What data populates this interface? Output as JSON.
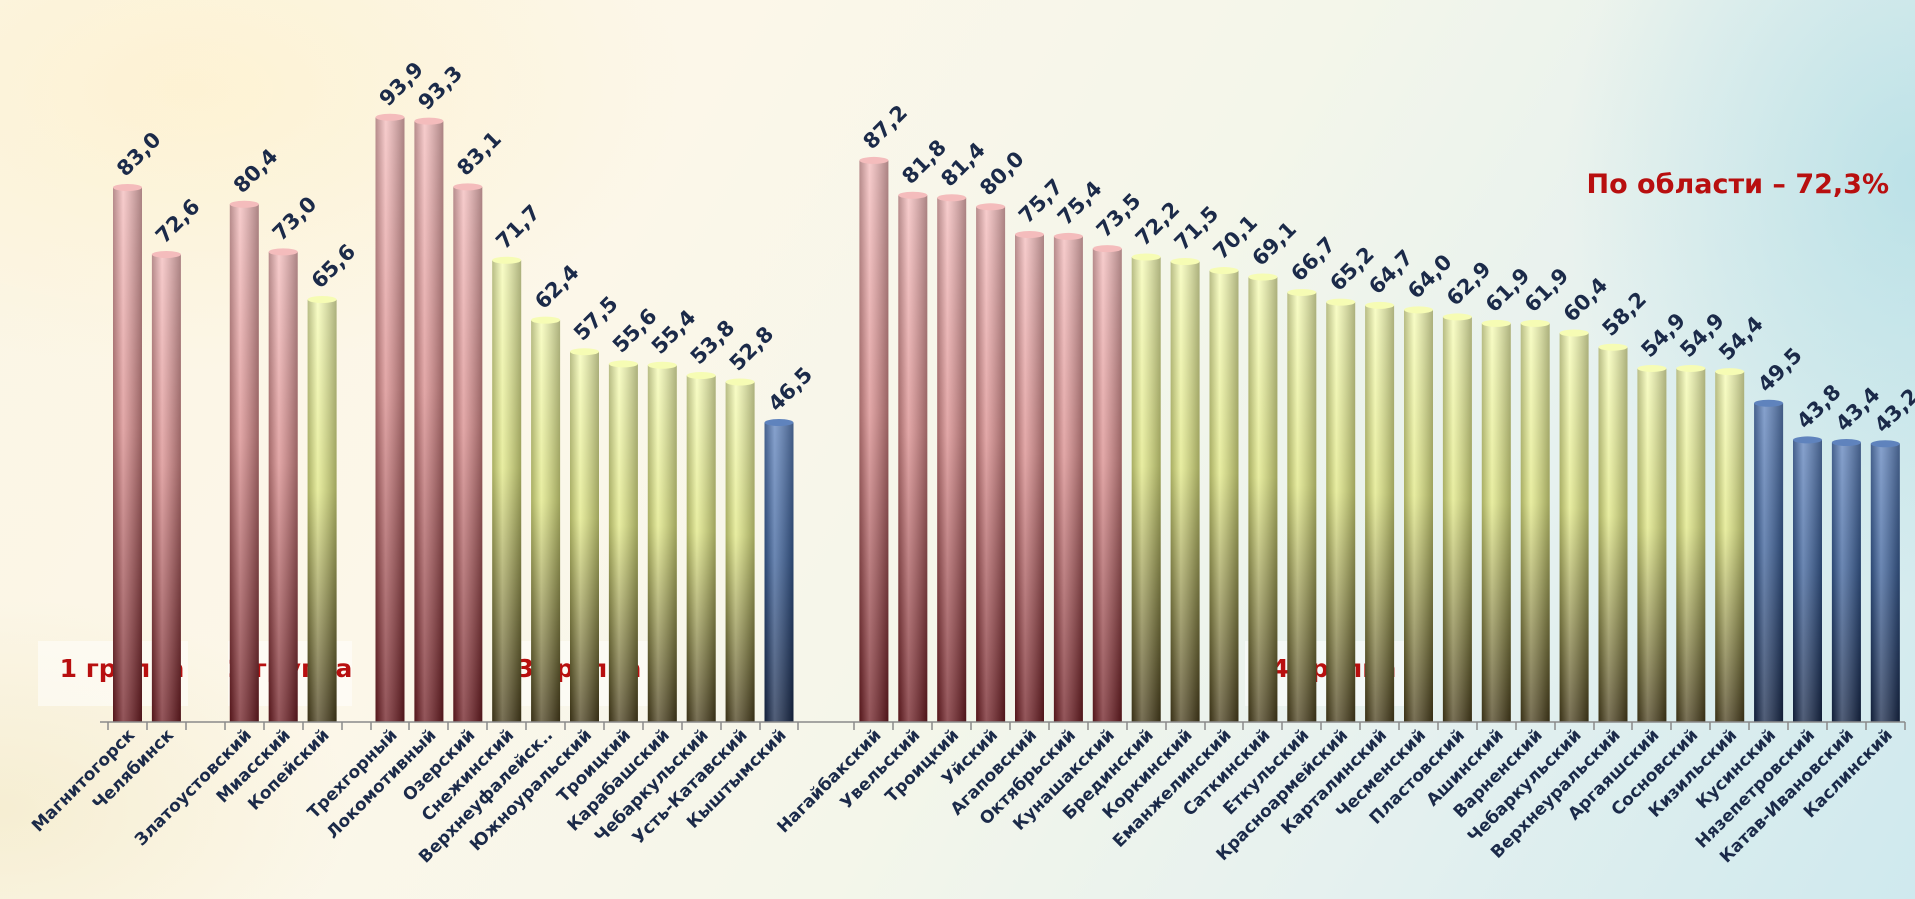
{
  "chart_data": {
    "type": "bar",
    "categories": [
      "Магнитогорск",
      "Челябинск",
      "Златоустовский",
      "Миасский",
      "Копейский",
      "Трехгорный",
      "Локомотивный",
      "Озерский",
      "Снежинский",
      "Верхнеуфалейск..",
      "Южноуральский",
      "Троицкий",
      "Карабашский",
      "Чебаркульский",
      "Усть-Катавский",
      "Кыштымский",
      "Нагайбакский",
      "Увельский",
      "Троицкий",
      "Уйский",
      "Агаповский",
      "Октябрьский",
      "Кунашакский",
      "Брединский",
      "Коркинский",
      "Еманжелинский",
      "Саткинский",
      "Еткульский",
      "Красноармейский",
      "Карталинский",
      "Чесменский",
      "Пластовский",
      "Ашинский",
      "Варненский",
      "Чебаркульский",
      "Верхнеуральский",
      "Аргаяшский",
      "Сосновский",
      "Кизильский",
      "Кусинский",
      "Нязепетровский",
      "Катав-Ивановский",
      "Каслинский"
    ],
    "values": [
      83.0,
      72.6,
      80.4,
      73.0,
      65.6,
      93.9,
      93.3,
      83.1,
      71.7,
      62.4,
      57.5,
      55.6,
      55.4,
      53.8,
      52.8,
      46.5,
      87.2,
      81.8,
      81.4,
      80.0,
      75.7,
      75.4,
      73.5,
      72.2,
      71.5,
      70.1,
      69.1,
      66.7,
      65.2,
      64.7,
      64.0,
      62.9,
      61.9,
      61.9,
      60.4,
      58.2,
      54.9,
      54.9,
      54.4,
      49.5,
      43.8,
      43.4,
      43.2
    ],
    "value_labels": [
      "83,0",
      "72,6",
      "80,4",
      "73,0",
      "65,6",
      "93,9",
      "93,3",
      "83,1",
      "71,7",
      "62,4",
      "57,5",
      "55,6",
      "55,4",
      "53,8",
      "52,8",
      "46,5",
      "87,2",
      "81,8",
      "81,4",
      "80,0",
      "75,7",
      "75,4",
      "73,5",
      "72,2",
      "71,5",
      "70,1",
      "69,1",
      "66,7",
      "65,2",
      "64,7",
      "64,0",
      "62,9",
      "61,9",
      "61,9",
      "60,4",
      "58,2",
      "54,9",
      "54,9",
      "54,4",
      "49,5",
      "43,8",
      "43,4",
      "43,2"
    ],
    "bar_colors": [
      "pink",
      "pink",
      "pink",
      "pink",
      "yellow",
      "pink",
      "pink",
      "pink",
      "yellow",
      "yellow",
      "yellow",
      "yellow",
      "yellow",
      "yellow",
      "yellow",
      "blue",
      "pink",
      "pink",
      "pink",
      "pink",
      "pink",
      "pink",
      "pink",
      "yellow",
      "yellow",
      "yellow",
      "yellow",
      "yellow",
      "yellow",
      "yellow",
      "yellow",
      "yellow",
      "yellow",
      "yellow",
      "yellow",
      "yellow",
      "yellow",
      "yellow",
      "yellow",
      "blue",
      "blue",
      "blue",
      "blue"
    ],
    "palette": {
      "pink": {
        "light": "#f4bcbc",
        "mid": "#d88a8a",
        "dark": "#6e1c22"
      },
      "yellow": {
        "light": "#f6fcb4",
        "mid": "#e0e782",
        "dark": "#4a3f1c"
      },
      "blue": {
        "light": "#5f83bd",
        "mid": "#3a5f99",
        "dark": "#17284a"
      }
    },
    "groups": [
      {
        "label": "1 группа"
      },
      {
        "label": "2 группа"
      },
      {
        "label": "3 группа"
      },
      {
        "label": "4 группа"
      }
    ],
    "annotation": "По области – 72,3%",
    "ylim": [
      0,
      100
    ],
    "grid": false,
    "legend": "none"
  }
}
